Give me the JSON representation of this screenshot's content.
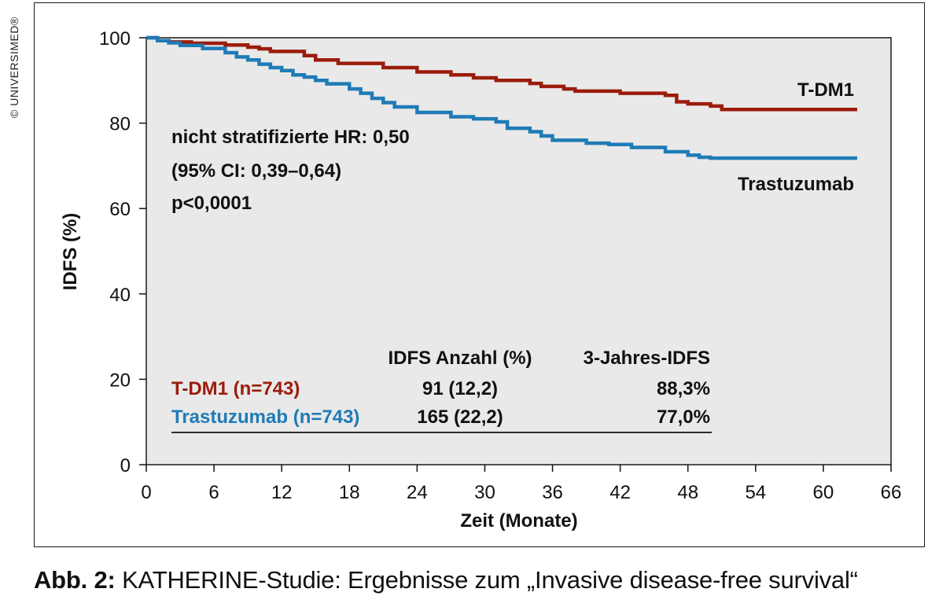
{
  "copyright": "© UNIVERSIMED®",
  "chart_data": {
    "type": "line",
    "step": true,
    "xlabel": "Zeit (Monate)",
    "ylabel": "IDFS (%)",
    "xlim": [
      0,
      66
    ],
    "ylim": [
      0,
      100
    ],
    "xticks": [
      0,
      6,
      12,
      18,
      24,
      30,
      36,
      42,
      48,
      54,
      60,
      66
    ],
    "yticks": [
      0,
      20,
      40,
      60,
      80,
      100
    ],
    "grid": false,
    "series": [
      {
        "name": "T-DM1",
        "color": "#9b1c0c",
        "x": [
          0,
          1,
          2,
          4,
          7,
          9,
          10,
          11,
          14,
          15,
          17,
          21,
          24,
          27,
          29,
          31,
          34,
          35,
          37,
          38,
          42,
          46,
          47,
          48,
          50,
          51,
          63
        ],
        "y": [
          100,
          99.3,
          99,
          98.7,
          98.3,
          97.8,
          97.4,
          96.8,
          95.8,
          94.8,
          94,
          93,
          92,
          91.3,
          90.6,
          90,
          89.3,
          88.6,
          88,
          87.5,
          87,
          86.5,
          85,
          84.5,
          84,
          83.2,
          83.2
        ]
      },
      {
        "name": "Trastuzumab",
        "color": "#1f7bb6",
        "x": [
          0,
          1,
          2,
          3,
          5,
          7,
          8,
          9,
          10,
          11,
          12,
          13,
          14,
          15,
          16,
          18,
          19,
          20,
          21,
          22,
          24,
          27,
          29,
          31,
          32,
          34,
          35,
          36,
          39,
          41,
          43,
          46,
          48,
          49,
          50,
          63
        ],
        "y": [
          100,
          99.3,
          98.8,
          98.2,
          97.5,
          96.5,
          95.5,
          94.8,
          93.8,
          93,
          92.3,
          91.3,
          90.8,
          90,
          89.2,
          88,
          87,
          85.8,
          84.8,
          83.8,
          82.5,
          81.5,
          81,
          80.3,
          78.8,
          78,
          77,
          76,
          75.3,
          75,
          74.3,
          73.3,
          72.5,
          72,
          71.8,
          71.8
        ]
      }
    ],
    "series_labels": [
      "T-DM1",
      "Trastuzumab"
    ],
    "annotation": [
      "nicht stratifizierte HR: 0,50",
      "(95% CI: 0,39–0,64)",
      "p<0,0001"
    ],
    "table": {
      "headers": [
        "IDFS Anzahl (%)",
        "3-Jahres-IDFS"
      ],
      "rows": [
        {
          "label": "T-DM1 (n=743)",
          "events": "91 (12,2)",
          "idfs3": "88,3%",
          "color": "#9b1c0c"
        },
        {
          "label": "Trastuzumab (n=743)",
          "events": "165 (22,2)",
          "idfs3": "77,0%",
          "color": "#1f7bb6"
        }
      ]
    }
  },
  "caption": {
    "bold": "Abb. 2:",
    "text": "KATHERINE-Studie: Ergebnisse zum „Invasive disease-free survival“"
  }
}
